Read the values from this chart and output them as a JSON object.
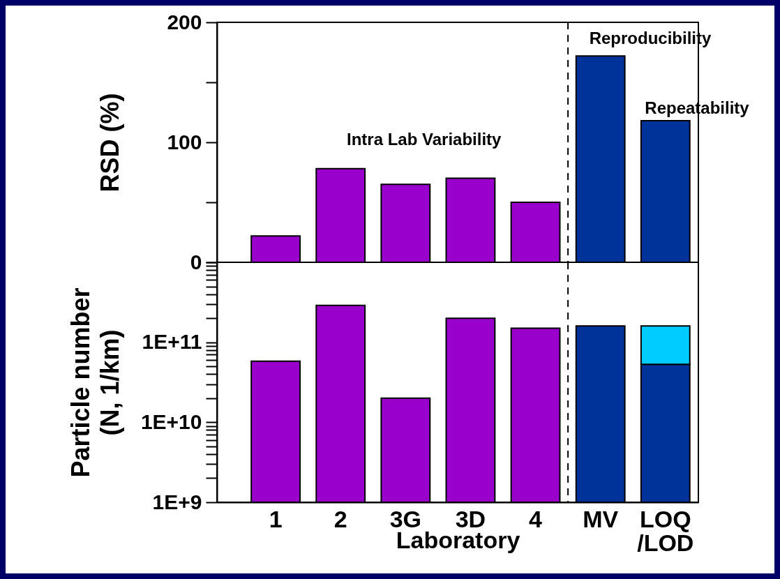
{
  "chart_data": [
    {
      "type": "bar",
      "ylabel": "RSD (%)",
      "categories": [
        "1",
        "2",
        "3G",
        "3D",
        "4",
        "MV",
        "LOQ\n/LOD"
      ],
      "stacked": true,
      "series": [
        {
          "color": "#9900cc",
          "values": [
            22,
            78,
            65,
            70,
            50,
            null,
            null
          ]
        },
        {
          "color": "#003399",
          "values": [
            null,
            null,
            null,
            null,
            null,
            172,
            118
          ]
        }
      ],
      "ylim": [
        0,
        200
      ],
      "yticks": [
        0,
        {
          "value": 50,
          "label": null
        },
        100,
        {
          "value": 150,
          "label": null
        },
        200
      ],
      "tick_labels": "y",
      "annotations": [
        "Intra Lab Variability",
        "Reproducibility",
        "Repeatability"
      ]
    },
    {
      "type": "bar",
      "xlabel": "Laboratory",
      "ylabel": "Particle number\n(N, 1/km)",
      "categories": [
        "1",
        "2",
        "3G",
        "3D",
        "4",
        "MV",
        "LOQ\n/LOD"
      ],
      "stacked": true,
      "log": true,
      "series": [
        {
          "color": "#9900cc",
          "values": [
            58000000000,
            290000000000,
            20000000000,
            200000000000,
            150000000000,
            null,
            null
          ]
        },
        {
          "color": "#003399",
          "values": [
            null,
            null,
            null,
            null,
            null,
            160000000000,
            53000000000
          ]
        },
        {
          "color": "#00ccff",
          "values": [
            null,
            null,
            null,
            null,
            null,
            null,
            107000000000
          ]
        }
      ],
      "ylim": [
        1000000000,
        1000000000000
      ],
      "yticks": [
        {
          "value": 1000000000,
          "label": "1E+9"
        },
        {
          "value": 2000000000,
          "label": null
        },
        {
          "value": 3000000000,
          "label": null
        },
        {
          "value": 4000000000,
          "label": null
        },
        {
          "value": 5000000000,
          "label": null
        },
        {
          "value": 6000000000,
          "label": null
        },
        {
          "value": 7000000000,
          "label": null
        },
        {
          "value": 8000000000,
          "label": null
        },
        {
          "value": 9000000000,
          "label": null
        },
        {
          "value": 10000000000,
          "label": "1E+10"
        },
        {
          "value": 20000000000,
          "label": null
        },
        {
          "value": 30000000000,
          "label": null
        },
        {
          "value": 40000000000,
          "label": null
        },
        {
          "value": 50000000000,
          "label": null
        },
        {
          "value": 60000000000,
          "label": null
        },
        {
          "value": 70000000000,
          "label": null
        },
        {
          "value": 80000000000,
          "label": null
        },
        {
          "value": 90000000000,
          "label": null
        },
        {
          "value": 100000000000,
          "label": "1E+11"
        },
        {
          "value": 200000000000,
          "label": null
        },
        {
          "value": 300000000000,
          "label": null
        },
        {
          "value": 400000000000,
          "label": null
        },
        {
          "value": 500000000000,
          "label": null
        },
        {
          "value": 600000000000,
          "label": null
        },
        {
          "value": 700000000000,
          "label": null
        },
        {
          "value": 800000000000,
          "label": null
        },
        {
          "value": 900000000000,
          "label": null
        },
        {
          "value": 1000000000000,
          "label": null
        }
      ]
    }
  ]
}
